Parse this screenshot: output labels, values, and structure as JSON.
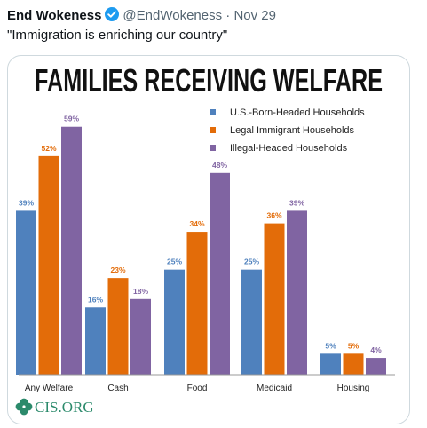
{
  "tweet": {
    "author_name": "End Wokeness",
    "handle": "@EndWokeness",
    "separator": "·",
    "date": "Nov 29",
    "text": "\"Immigration is enriching our country\""
  },
  "colors": {
    "verified": "#1d9bf0",
    "series": [
      "#4f81bd",
      "#e36c09",
      "#8064a2"
    ],
    "axis": "#999999",
    "logo": "#2b8a6b"
  },
  "logo": {
    "text": "CIS.ORG",
    "icon": "clover-logo-icon"
  },
  "chart_data": {
    "type": "bar",
    "title": "FAMILIES RECEIVING WELFARE",
    "categories": [
      "Any Welfare",
      "Cash",
      "Food",
      "Medicaid",
      "Housing"
    ],
    "series": [
      {
        "name": "U.S.-Born-Headed Households",
        "values": [
          39,
          16,
          25,
          25,
          5
        ],
        "labels": [
          "39%",
          "16%",
          "25%",
          "25%",
          "5%"
        ]
      },
      {
        "name": "Legal Immigrant Households",
        "values": [
          52,
          23,
          34,
          36,
          5
        ],
        "labels": [
          "52%",
          "23%",
          "34%",
          "36%",
          "5%"
        ]
      },
      {
        "name": "Illegal-Headed Households",
        "values": [
          59,
          18,
          48,
          39,
          4
        ],
        "labels": [
          "59%",
          "18%",
          "48%",
          "39%",
          "4%"
        ]
      }
    ],
    "ylim": [
      0,
      60
    ],
    "grid": false,
    "legend": "top-right"
  }
}
